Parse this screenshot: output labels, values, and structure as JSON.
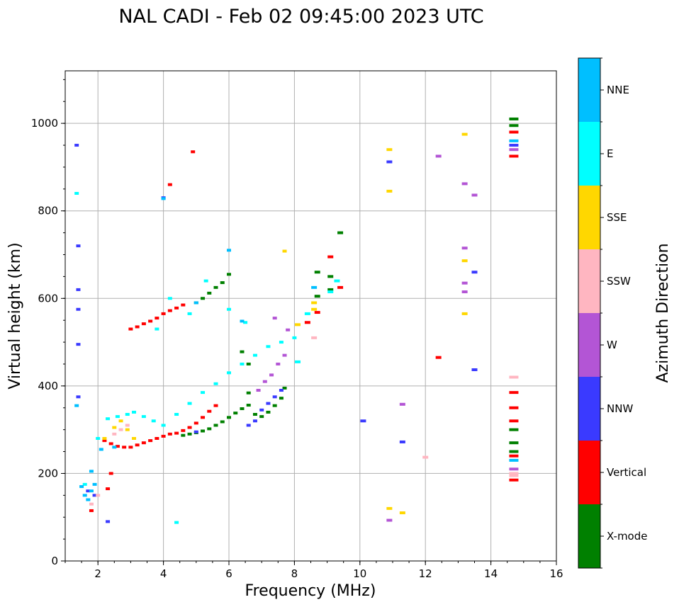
{
  "chart_data": {
    "type": "scatter",
    "title": "NAL CADI - Feb 02 09:45:00 2023 UTC",
    "xlabel": "Frequency (MHz)",
    "ylabel": "Virtual height (km)",
    "xlim": [
      1,
      16
    ],
    "ylim": [
      0,
      1120
    ],
    "xticks": [
      2,
      4,
      6,
      8,
      10,
      12,
      14,
      16
    ],
    "yticks": [
      0,
      200,
      400,
      600,
      800,
      1000
    ],
    "xtick_labels": [
      "2",
      "4",
      "6",
      "8",
      "10",
      "12",
      "14",
      "16"
    ],
    "ytick_labels": [
      "0",
      "200",
      "400",
      "600",
      "800",
      "1000"
    ],
    "grid": true,
    "colorbar": {
      "title": "Azimuth Direction",
      "categories": [
        {
          "label": "X-mode",
          "color": "#008000"
        },
        {
          "label": "Vertical",
          "color": "#ff0000"
        },
        {
          "label": "NNW",
          "color": "#3a3aff"
        },
        {
          "label": "W",
          "color": "#b355d5"
        },
        {
          "label": "SSW",
          "color": "#ffb6c1"
        },
        {
          "label": "SSE",
          "color": "#ffd700"
        },
        {
          "label": "E",
          "color": "#00ffff"
        },
        {
          "label": "NNE",
          "color": "#00bfff"
        }
      ]
    },
    "series": [
      {
        "name": "X-mode",
        "color": "#008000",
        "points": [
          [
            4.6,
            287
          ],
          [
            4.8,
            290
          ],
          [
            5.0,
            293
          ],
          [
            5.2,
            297
          ],
          [
            5.4,
            302
          ],
          [
            5.6,
            310
          ],
          [
            5.8,
            318
          ],
          [
            6.0,
            328
          ],
          [
            6.2,
            338
          ],
          [
            6.4,
            348
          ],
          [
            6.6,
            356
          ],
          [
            6.8,
            335
          ],
          [
            7.0,
            330
          ],
          [
            7.2,
            340
          ],
          [
            7.4,
            355
          ],
          [
            7.6,
            372
          ],
          [
            7.7,
            395
          ],
          [
            5.0,
            590
          ],
          [
            5.2,
            600
          ],
          [
            5.4,
            612
          ],
          [
            5.6,
            625
          ],
          [
            5.8,
            636
          ],
          [
            6.0,
            655
          ],
          [
            6.4,
            478
          ],
          [
            6.6,
            450
          ],
          [
            6.6,
            384
          ],
          [
            8.7,
            660
          ],
          [
            8.7,
            605
          ],
          [
            9.1,
            650
          ],
          [
            9.1,
            620
          ],
          [
            9.4,
            750
          ],
          [
            14.7,
            1010
          ],
          [
            14.7,
            995
          ],
          [
            14.7,
            300
          ],
          [
            14.7,
            270
          ],
          [
            14.7,
            250
          ]
        ]
      },
      {
        "name": "Vertical",
        "color": "#ff0000",
        "points": [
          [
            2.2,
            275
          ],
          [
            2.4,
            268
          ],
          [
            2.6,
            262
          ],
          [
            2.8,
            260
          ],
          [
            3.0,
            260
          ],
          [
            3.2,
            265
          ],
          [
            3.4,
            270
          ],
          [
            3.6,
            275
          ],
          [
            3.8,
            280
          ],
          [
            4.0,
            285
          ],
          [
            4.2,
            290
          ],
          [
            4.4,
            292
          ],
          [
            4.6,
            298
          ],
          [
            4.8,
            305
          ],
          [
            5.0,
            315
          ],
          [
            5.2,
            328
          ],
          [
            5.4,
            342
          ],
          [
            5.6,
            355
          ],
          [
            3.0,
            530
          ],
          [
            3.2,
            535
          ],
          [
            3.4,
            542
          ],
          [
            3.6,
            548
          ],
          [
            3.8,
            555
          ],
          [
            4.0,
            565
          ],
          [
            4.2,
            572
          ],
          [
            4.4,
            578
          ],
          [
            4.6,
            585
          ],
          [
            1.8,
            115
          ],
          [
            2.3,
            165
          ],
          [
            2.4,
            200
          ],
          [
            4.2,
            860
          ],
          [
            4.9,
            935
          ],
          [
            8.4,
            545
          ],
          [
            8.7,
            568
          ],
          [
            9.1,
            695
          ],
          [
            9.4,
            625
          ],
          [
            12.4,
            465
          ],
          [
            14.7,
            980
          ],
          [
            14.7,
            925
          ],
          [
            14.7,
            385
          ],
          [
            14.7,
            350
          ],
          [
            14.7,
            320
          ],
          [
            14.7,
            240
          ],
          [
            14.7,
            185
          ]
        ]
      },
      {
        "name": "NNW",
        "color": "#3a3aff",
        "points": [
          [
            1.35,
            950
          ],
          [
            1.4,
            720
          ],
          [
            1.4,
            620
          ],
          [
            1.4,
            575
          ],
          [
            1.4,
            495
          ],
          [
            1.4,
            375
          ],
          [
            1.7,
            160
          ],
          [
            1.9,
            150
          ],
          [
            2.3,
            90
          ],
          [
            4.0,
            830
          ],
          [
            5.0,
            295
          ],
          [
            6.6,
            310
          ],
          [
            6.8,
            320
          ],
          [
            7.0,
            345
          ],
          [
            7.2,
            360
          ],
          [
            7.4,
            375
          ],
          [
            7.6,
            390
          ],
          [
            10.1,
            320
          ],
          [
            10.9,
            912
          ],
          [
            11.3,
            272
          ],
          [
            13.5,
            660
          ],
          [
            13.5,
            437
          ],
          [
            14.7,
            950
          ]
        ]
      },
      {
        "name": "W",
        "color": "#b355d5",
        "points": [
          [
            6.9,
            390
          ],
          [
            7.1,
            410
          ],
          [
            7.3,
            425
          ],
          [
            7.5,
            450
          ],
          [
            7.7,
            470
          ],
          [
            7.8,
            528
          ],
          [
            7.4,
            555
          ],
          [
            12.4,
            925
          ],
          [
            13.2,
            862
          ],
          [
            13.5,
            836
          ],
          [
            13.2,
            715
          ],
          [
            13.2,
            635
          ],
          [
            13.2,
            615
          ],
          [
            10.9,
            93
          ],
          [
            11.3,
            358
          ],
          [
            14.7,
            940
          ],
          [
            14.7,
            210
          ]
        ]
      },
      {
        "name": "SSW",
        "color": "#ffb6c1",
        "points": [
          [
            1.8,
            130
          ],
          [
            2.0,
            150
          ],
          [
            2.5,
            290
          ],
          [
            2.7,
            300
          ],
          [
            2.9,
            310
          ],
          [
            8.6,
            510
          ],
          [
            12.0,
            237
          ],
          [
            14.7,
            420
          ],
          [
            14.7,
            200
          ],
          [
            14.7,
            195
          ]
        ]
      },
      {
        "name": "SSE",
        "color": "#ffd700",
        "points": [
          [
            2.2,
            280
          ],
          [
            2.5,
            305
          ],
          [
            2.7,
            320
          ],
          [
            2.9,
            300
          ],
          [
            3.1,
            280
          ],
          [
            7.7,
            708
          ],
          [
            8.1,
            540
          ],
          [
            8.6,
            590
          ],
          [
            8.6,
            575
          ],
          [
            10.9,
            940
          ],
          [
            10.9,
            845
          ],
          [
            10.9,
            120
          ],
          [
            11.3,
            110
          ],
          [
            13.2,
            975
          ],
          [
            13.2,
            686
          ],
          [
            13.2,
            565
          ]
        ]
      },
      {
        "name": "E",
        "color": "#00ffff",
        "points": [
          [
            1.6,
            175
          ],
          [
            2.0,
            280
          ],
          [
            2.3,
            325
          ],
          [
            2.6,
            330
          ],
          [
            2.9,
            335
          ],
          [
            3.1,
            340
          ],
          [
            3.4,
            330
          ],
          [
            3.7,
            320
          ],
          [
            4.0,
            310
          ],
          [
            4.4,
            335
          ],
          [
            4.8,
            360
          ],
          [
            5.2,
            385
          ],
          [
            5.6,
            405
          ],
          [
            6.0,
            430
          ],
          [
            6.4,
            450
          ],
          [
            6.8,
            470
          ],
          [
            7.2,
            490
          ],
          [
            7.6,
            500
          ],
          [
            3.8,
            530
          ],
          [
            4.2,
            600
          ],
          [
            4.4,
            88
          ],
          [
            4.8,
            565
          ],
          [
            5.3,
            640
          ],
          [
            6.0,
            575
          ],
          [
            6.5,
            545
          ],
          [
            8.0,
            510
          ],
          [
            8.1,
            455
          ],
          [
            8.4,
            565
          ],
          [
            9.1,
            615
          ],
          [
            9.3,
            640
          ],
          [
            1.35,
            840
          ]
        ]
      },
      {
        "name": "NNE",
        "color": "#00bfff",
        "points": [
          [
            1.5,
            170
          ],
          [
            1.6,
            150
          ],
          [
            1.7,
            140
          ],
          [
            1.8,
            160
          ],
          [
            1.9,
            175
          ],
          [
            1.8,
            205
          ],
          [
            2.1,
            255
          ],
          [
            2.5,
            260
          ],
          [
            4.0,
            828
          ],
          [
            5.0,
            590
          ],
          [
            6.0,
            710
          ],
          [
            6.4,
            548
          ],
          [
            8.6,
            625
          ],
          [
            14.7,
            230
          ],
          [
            14.7,
            960
          ],
          [
            1.35,
            355
          ]
        ]
      }
    ]
  }
}
